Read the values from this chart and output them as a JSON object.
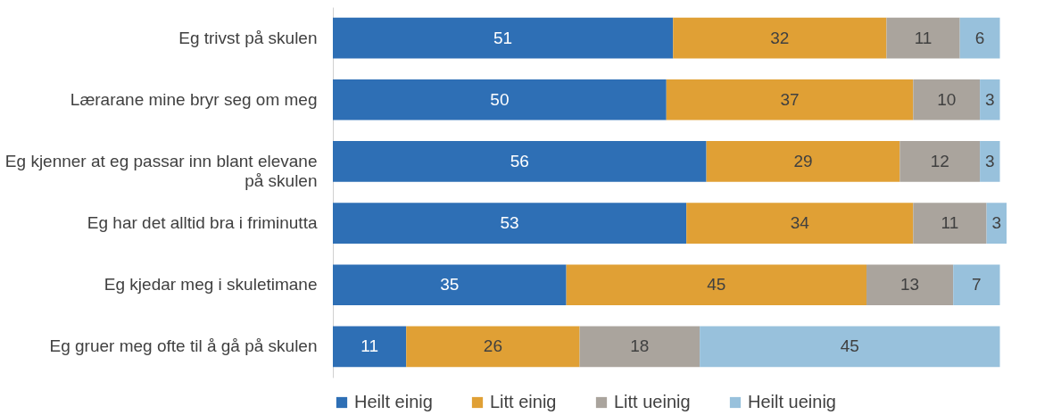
{
  "chart_data": {
    "type": "bar",
    "orientation": "horizontal",
    "stacked": true,
    "data_labels": true,
    "legend": "bottom",
    "grid": false,
    "categories": [
      "Eg trivst på skulen",
      "Lærarane mine bryr seg om meg",
      "Eg kjenner at eg passar inn blant elevane på skulen",
      "Eg har det alltid bra i friminutta",
      "Eg kjedar meg i skuletimane",
      "Eg gruer meg ofte til å gå på skulen"
    ],
    "series": [
      {
        "name": "Heilt einig",
        "color": "#2e6fb5",
        "values": [
          51,
          50,
          56,
          53,
          35,
          11
        ]
      },
      {
        "name": "Litt einig",
        "color": "#e0a035",
        "values": [
          32,
          37,
          29,
          34,
          45,
          26
        ]
      },
      {
        "name": "Litt ueinig",
        "color": "#aaa49d",
        "values": [
          11,
          10,
          12,
          11,
          13,
          18
        ]
      },
      {
        "name": "Heilt ueinig",
        "color": "#98c1dc",
        "values": [
          6,
          3,
          3,
          3,
          7,
          45
        ]
      }
    ]
  }
}
